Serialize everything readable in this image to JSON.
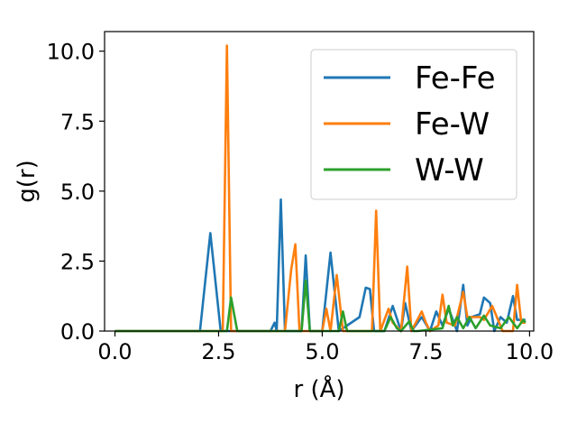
{
  "chart_data": {
    "type": "line",
    "title": "",
    "xlabel": "r (Å)",
    "ylabel": "g(r)",
    "xlim": [
      -0.25,
      10.1
    ],
    "ylim": [
      0,
      10.7
    ],
    "x_ticks": [
      "0.0",
      "2.5",
      "5.0",
      "7.5",
      "10.0"
    ],
    "y_ticks": [
      "0.0",
      "2.5",
      "5.0",
      "7.5",
      "10.0"
    ],
    "grid": false,
    "legend_position": "top-right",
    "series": [
      {
        "name": "Fe-Fe",
        "color": "#1f77b4",
        "x": [
          0,
          2.05,
          2.3,
          2.55,
          3.75,
          3.85,
          3.9,
          4.0,
          4.1,
          4.5,
          4.6,
          4.7,
          5.0,
          5.2,
          5.4,
          5.9,
          6.05,
          6.15,
          6.25,
          6.5,
          6.7,
          6.9,
          7.0,
          7.15,
          7.4,
          7.6,
          7.75,
          7.9,
          8.05,
          8.25,
          8.4,
          8.5,
          8.6,
          8.8,
          8.9,
          9.05,
          9.15,
          9.3,
          9.45,
          9.6,
          9.7,
          9.8,
          9.9
        ],
        "y": [
          0,
          0,
          3.5,
          0,
          0,
          0.3,
          0,
          4.7,
          0,
          0,
          2.7,
          0,
          0,
          2.8,
          0,
          0.5,
          1.55,
          1.5,
          0,
          0,
          0.9,
          0,
          1.0,
          0,
          0.5,
          0,
          0.7,
          0.2,
          0.8,
          0,
          1.65,
          0.2,
          0.5,
          0.6,
          1.2,
          1.0,
          0,
          0.5,
          0.3,
          1.25,
          0.4,
          0.4,
          0.4
        ]
      },
      {
        "name": "Fe-W",
        "color": "#ff7f0e",
        "x": [
          0,
          2.6,
          2.7,
          2.8,
          4.1,
          4.25,
          4.35,
          4.45,
          5.0,
          5.1,
          5.2,
          5.35,
          5.5,
          6.2,
          6.3,
          6.4,
          6.6,
          6.7,
          6.9,
          7.05,
          7.15,
          7.4,
          7.5,
          7.6,
          7.8,
          7.9,
          8.0,
          8.2,
          8.4,
          8.5,
          8.8,
          8.9,
          9.1,
          9.35,
          9.5,
          9.6,
          9.7,
          9.8,
          9.9
        ],
        "y": [
          0,
          0,
          10.2,
          0,
          0,
          2.2,
          3.1,
          0,
          0,
          0.8,
          0,
          2.0,
          0,
          0,
          4.3,
          0,
          0.8,
          0.3,
          0,
          2.3,
          0,
          0.7,
          0.3,
          0,
          0.2,
          1.3,
          0.3,
          0.2,
          1.4,
          0.5,
          0.5,
          0.4,
          0.9,
          0,
          0,
          0,
          1.65,
          0.3,
          0.3
        ]
      },
      {
        "name": "W-W",
        "color": "#2ca02c",
        "x": [
          0,
          2.7,
          2.8,
          2.95,
          4.5,
          4.6,
          4.7,
          5.4,
          5.5,
          5.6,
          6.5,
          6.65,
          6.8,
          6.9,
          7.1,
          7.2,
          7.3,
          7.9,
          8.05,
          8.15,
          8.25,
          8.4,
          8.55,
          8.7,
          8.9,
          9.05,
          9.3,
          9.5,
          9.7,
          9.85,
          9.9
        ],
        "y": [
          0,
          0,
          1.2,
          0,
          0,
          1.8,
          0,
          0,
          0.7,
          0,
          0,
          0.5,
          0.1,
          0,
          0.35,
          0,
          0,
          0.1,
          0.9,
          0.2,
          0.5,
          0.1,
          0.5,
          0.1,
          0.55,
          0.2,
          0.1,
          0.5,
          0.1,
          0.4,
          0.3
        ]
      }
    ]
  }
}
